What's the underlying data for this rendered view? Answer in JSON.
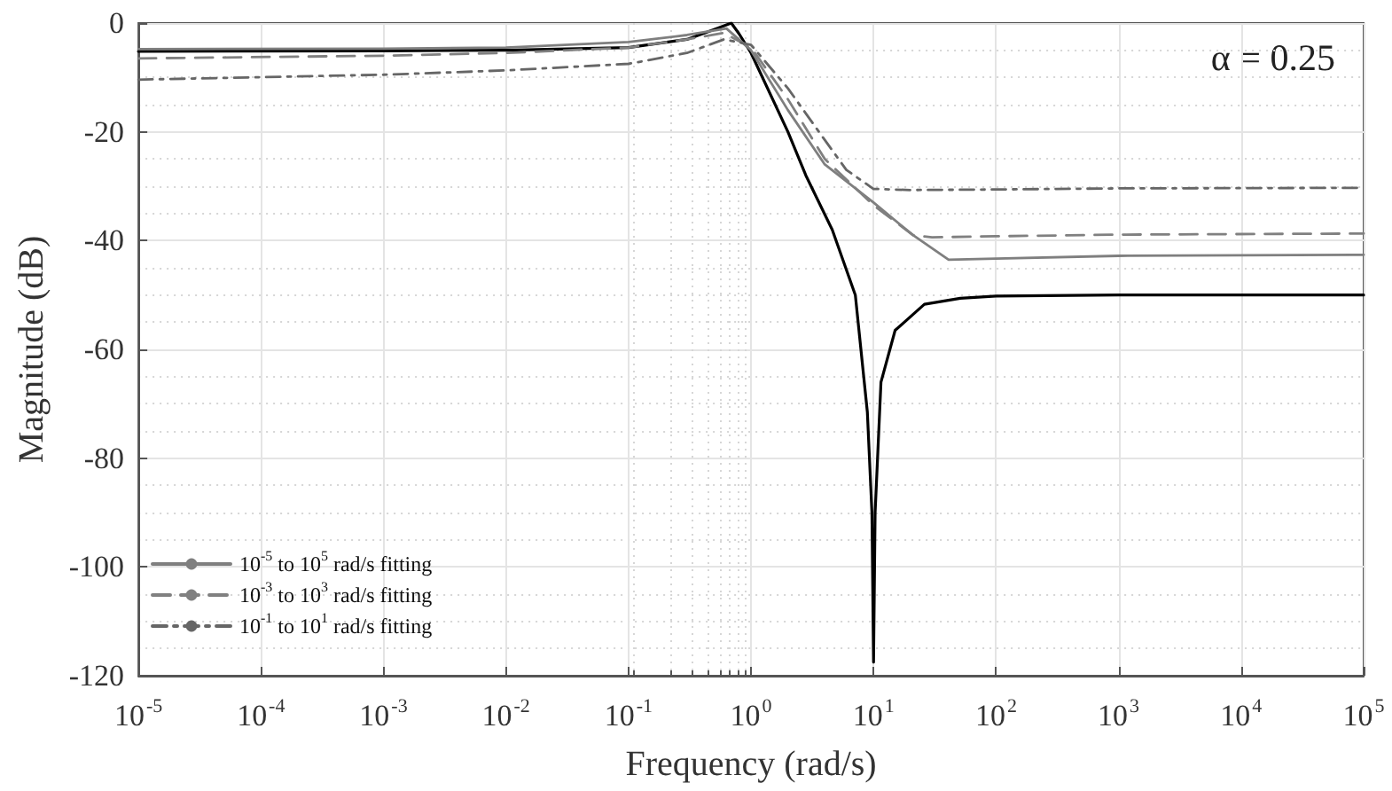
{
  "chart_data": {
    "type": "line",
    "xlabel": "Frequency (rad/s)",
    "ylabel": "Magnitude (dB)",
    "annotations": [
      "α = 0.25"
    ],
    "log": "x",
    "grid": true,
    "legend": "bottom left",
    "marker": "none",
    "xlim": [
      1e-05,
      100000
    ],
    "xticks": [
      {
        "value": 1e-05,
        "label": "10$^{-5}$"
      },
      {
        "value": 0.0001,
        "label": "10$^{-4}$"
      },
      {
        "value": 0.001,
        "label": "10$^{-3}$"
      },
      {
        "value": 0.01,
        "label": "10$^{-2}$"
      },
      {
        "value": 0.1,
        "label": "10$^{-1}$"
      },
      {
        "value": 1,
        "label": "10$^{0}$"
      },
      {
        "value": 10,
        "label": "10$^{1}$"
      },
      {
        "value": 100,
        "label": "10$^{2}$"
      },
      {
        "value": 1000,
        "label": "10$^{3}$"
      },
      {
        "value": 10000,
        "label": "10$^{4}$"
      },
      {
        "value": 100000,
        "label": "10$^{5}$"
      }
    ],
    "ylim": [
      -120,
      0
    ],
    "yticks": [
      -120,
      -100,
      -80,
      -60,
      -40,
      -20,
      0
    ],
    "series": [
      {
        "color": "#000000",
        "line_style": "solid",
        "x": [
          1e-05,
          0.001,
          0.01,
          0.1,
          0.3,
          0.5,
          0.69,
          0.8,
          1,
          2,
          2.8,
          4.6,
          7.1,
          8.9,
          9.7,
          10,
          10.3,
          11.5,
          15,
          26,
          51,
          100,
          1000,
          100000
        ],
        "values": [
          -5.2,
          -5.1,
          -5,
          -4.5,
          -3,
          -1.2,
          0,
          -2,
          -5.5,
          -20,
          -28,
          -38,
          -50,
          -71.5,
          -90,
          -117.5,
          -90,
          -66,
          -56.5,
          -51.7,
          -50.6,
          -50.2,
          -50,
          -50
        ]
      },
      {
        "name": "10$^{-5}$ to 10$^{5}$ rad/s fitting",
        "color": "#7f7f7f",
        "line_style": "solid",
        "x": [
          1e-05,
          0.001,
          0.01,
          0.1,
          0.3,
          0.63,
          1,
          2,
          4,
          10,
          21,
          41,
          100,
          1000,
          100000
        ],
        "values": [
          -4.8,
          -4.7,
          -4.5,
          -3.5,
          -2.2,
          -1,
          -5,
          -16,
          -26,
          -33,
          -39,
          -43.5,
          -43.3,
          -42.8,
          -42.6
        ]
      },
      {
        "name": "10$^{-3}$ to 10$^{3}$ rad/s fitting",
        "color": "#808080",
        "line_style": "dashed",
        "x": [
          1e-05,
          0.001,
          0.01,
          0.1,
          0.3,
          0.6,
          1,
          2,
          4,
          10,
          21,
          30,
          100,
          1000,
          100000
        ],
        "values": [
          -6.5,
          -6,
          -5.5,
          -4.5,
          -3,
          -1.8,
          -4.5,
          -14,
          -25,
          -33.5,
          -39,
          -39.4,
          -39.2,
          -38.9,
          -38.7
        ]
      },
      {
        "name": "10$^{-1}$ to 10$^{1}$ rad/s fitting",
        "color": "#666666",
        "line_style": "dashdot",
        "x": [
          1e-05,
          0.001,
          0.01,
          0.1,
          0.3,
          0.6,
          1,
          2,
          3.8,
          6,
          10,
          20,
          100,
          1000,
          100000
        ],
        "values": [
          -10.4,
          -9.5,
          -8.7,
          -7.5,
          -5.5,
          -3,
          -4,
          -12,
          -20.8,
          -27,
          -30.5,
          -30.7,
          -30.6,
          -30.4,
          -30.3
        ]
      }
    ]
  }
}
